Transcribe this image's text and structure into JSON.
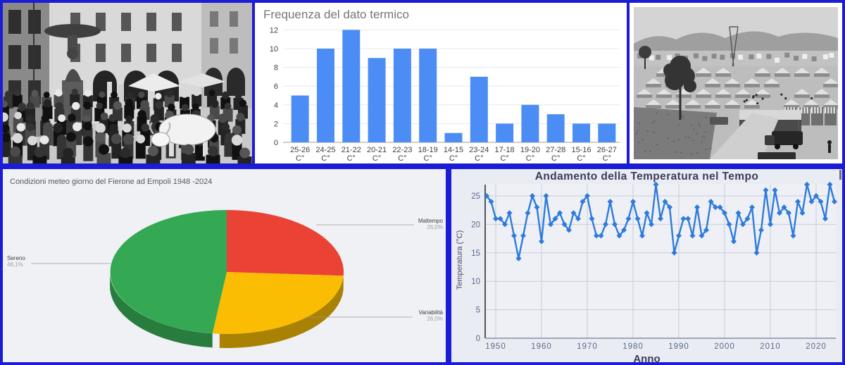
{
  "colors": {
    "frame": "#1c1cd6",
    "bar_panel_bg": "#ffffff",
    "pie_panel_bg": "#f0f1f5",
    "line_panel_bg": "#e9ecf3"
  },
  "chart_data": [
    {
      "type": "bar",
      "title": "Frequenza del dato termico",
      "categories": [
        "25-26",
        "24-25",
        "21-22",
        "20-21",
        "22-23",
        "18-19",
        "14-15",
        "23-24",
        "17-18",
        "19-20",
        "27-28",
        "15-16",
        "26-27"
      ],
      "unit": "C°",
      "values": [
        5,
        10,
        12,
        9,
        10,
        10,
        1,
        7,
        2,
        4,
        3,
        2,
        2
      ],
      "ylim": [
        0,
        12
      ],
      "yticks": [
        0,
        2,
        4,
        6,
        8,
        10,
        12
      ],
      "bar_color": "#4c8df5",
      "grid": true,
      "legend": "none"
    },
    {
      "type": "pie",
      "title": "Condizioni meteo giorno del Fierone ad Empoli 1948 -2024",
      "effect_3d": true,
      "slices": [
        {
          "label": "Maltempo",
          "value": 26.0,
          "display": "26,0%",
          "color": "#ea4335",
          "side_color": "#ab3226"
        },
        {
          "label": "Variabilità",
          "value": 26.0,
          "display": "26,0%",
          "color": "#fbbc04",
          "side_color": "#a98203"
        },
        {
          "label": "Sereno",
          "value": 48.1,
          "display": "48,1%",
          "color": "#34a853",
          "side_color": "#277c3e"
        }
      ]
    },
    {
      "type": "line",
      "title": "Andamento della Temperatura nel Tempo",
      "xlabel": "Anno",
      "ylabel": "Temperatura (°C)",
      "year_start": 1948,
      "year_end": 2024,
      "xticks": [
        1950,
        1960,
        1970,
        1980,
        1990,
        2000,
        2010,
        2020
      ],
      "yticks": [
        0,
        5,
        10,
        15,
        20,
        25
      ],
      "ylim": [
        0,
        27.5
      ],
      "line_color": "#2e7bdb",
      "marker": "diamond",
      "grid": true,
      "values": [
        25,
        24,
        21,
        21,
        20,
        22,
        18,
        14,
        18,
        22,
        25,
        23,
        17,
        25,
        20,
        21,
        22,
        20,
        19,
        22,
        21,
        24,
        25,
        21,
        18,
        18,
        20,
        24,
        20,
        18,
        19,
        21,
        24,
        21,
        18,
        22,
        20,
        27,
        21,
        24,
        23,
        15,
        18,
        21,
        21,
        18,
        23,
        18,
        19,
        24,
        23,
        23,
        22,
        20,
        17,
        22,
        20,
        21,
        23,
        15,
        19,
        26,
        20,
        26,
        22,
        23,
        22,
        18,
        24,
        22,
        27,
        24,
        25,
        24,
        21,
        27,
        24
      ]
    }
  ]
}
